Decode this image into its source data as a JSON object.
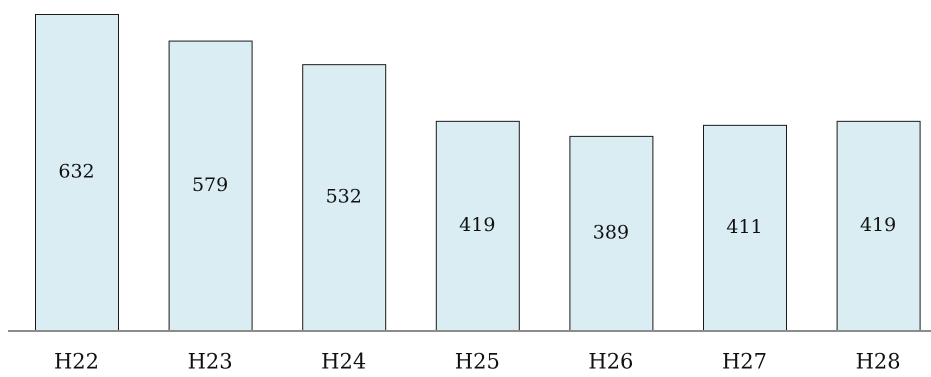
{
  "chart_data": {
    "type": "bar",
    "title": "",
    "xlabel": "",
    "ylabel": "",
    "categories": [
      "H22",
      "H23",
      "H24",
      "H25",
      "H26",
      "H27",
      "H28"
    ],
    "values": [
      632,
      579,
      532,
      419,
      389,
      411,
      419
    ],
    "ylim": [
      0,
      632
    ],
    "grid": false,
    "legend": "none",
    "colors": {
      "bar_fill": "#daedf3",
      "bar_stroke": "#1a1a1a",
      "baseline": "#8c8c8c",
      "text": "#111111"
    }
  }
}
